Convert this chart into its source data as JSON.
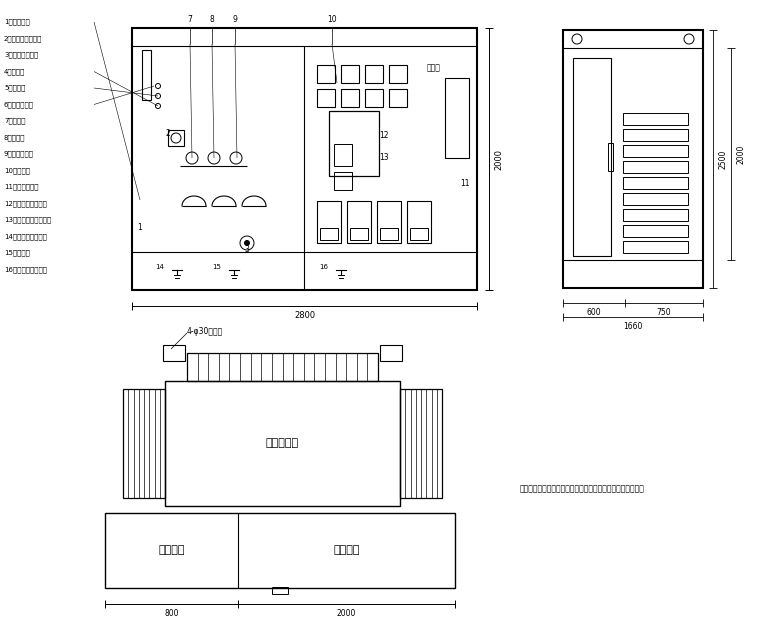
{
  "bg_color": "#ffffff",
  "line_color": "#000000",
  "legend_items": [
    "1、高压套管",
    "2、四位置负荷开关",
    "3、调压分接开关",
    "4、油位计",
    "5、注油口",
    "6、压力释放阀",
    "7、温度计",
    "8、压力表",
    "9、储油柜断器",
    "10、表计室",
    "11、无功补偿装",
    "12、低压侧主断路器",
    "13、低压侧自动断路器",
    "14、高压变接地端子",
    "15、放油阀",
    "16、低压变接地端子"
  ],
  "dim_front_width": "2800",
  "dim_front_height": "2000",
  "dim_side_width1": "600",
  "dim_side_width2": "750",
  "dim_side_total": "1660",
  "dim_side_height1": "2500",
  "dim_side_height2": "2000",
  "dim_bottom_width1": "800",
  "dim_bottom_width2": "2000",
  "label_electron": "电子表",
  "label_transformer_body": "变压器主体",
  "label_hv_cabinet": "高压间隔",
  "label_lv_cabinet": "低压间隔",
  "label_bolt": "4-φ30安装孔",
  "note_text": "说明：以上尺寸仅供作为参考，最终尺寸以厂家产品实制为准"
}
